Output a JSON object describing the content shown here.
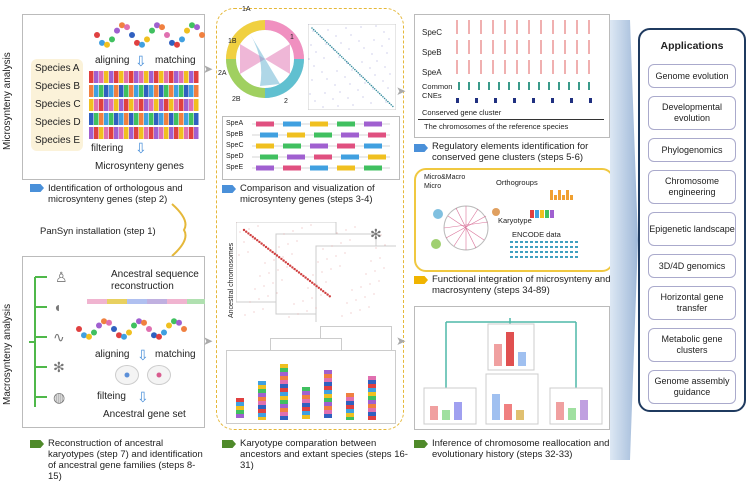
{
  "side_labels": {
    "micro": "Microsynteny analysis",
    "macro": "Macrosynteny analysis"
  },
  "micro_panel": {
    "species": [
      "Species A",
      "Species B",
      "Species C",
      "Species D",
      "Species E"
    ],
    "aligning": "aligning",
    "matching": "matching",
    "filtering": "filtering",
    "result": "Microsynteny genes"
  },
  "step2": "Identification of orthologous and microsynteny genes (step 2)",
  "step1": "PanSyn installation (step 1)",
  "macro_panel": {
    "ancestral_seq": "Ancestral sequence reconstruction",
    "aligning": "aligning",
    "matching": "matching",
    "filtering": "filteing",
    "result": "Ancestral gene set"
  },
  "step7": "Reconstruction of ancestral karyotypes (step 7) and identification of ancestral gene families (steps 8-15)",
  "circos_labels": [
    "1A",
    "1B",
    "1",
    "2A",
    "2B",
    "2"
  ],
  "spe_labels": [
    "SpeA",
    "SpeB",
    "SpeC",
    "SpeD",
    "SpeE"
  ],
  "step34": "Comparison and visualization of microsynteny genes (steps 3-4)",
  "ancestral_chromosomes": "Ancestral chromosomes",
  "step16": "Karyotype comparation between ancestors and extant species (steps 16-31)",
  "reg_panel": {
    "rows": [
      "SpeC",
      "SpeB",
      "SpeA"
    ],
    "cnes": "Common CNEs",
    "cluster": "Conserved gene cluster",
    "chrom": "The chromosomes of the reference species"
  },
  "step56": "Regulatory elements identification for conserved gene clusters (steps 5-6)",
  "func_panel": {
    "legend_a": "Micro&Macro",
    "legend_b": "Micro",
    "orthogroups": "Orthogroups",
    "karyotype": "Karyotype",
    "encode": "ENCODE data"
  },
  "step3489": "Functional integration of microsynteny and macrosynteny (steps 34-89)",
  "step3233": "Inference of chromosome reallocation and evolutionary history (steps 32-33)",
  "applications": {
    "title": "Applications",
    "items": [
      "Genome evolution",
      "Developmental evolution",
      "Phylogenomics",
      "Chromosome engineering",
      "Epigenetic landscape",
      "3D/4D genomics",
      "Horizontal gene transfer",
      "Metabolic gene clusters",
      "Genome assembly guidance"
    ]
  },
  "colors": {
    "blue": "#4a90d9",
    "green": "#4f8a2a",
    "yellow": "#f0b400",
    "navy": "#1f3a5f"
  }
}
